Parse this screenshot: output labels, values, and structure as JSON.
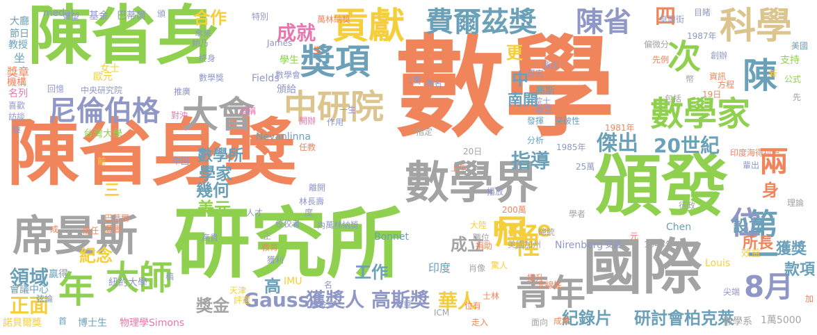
{
  "words": [
    {
      "text": "數學",
      "color": "#f0855c"
    },
    {
      "text": "陳省身獎",
      "color": "#f0855c"
    },
    {
      "text": "研究所",
      "color": "#8fd14f"
    },
    {
      "text": "陳省身",
      "color": "#8fd14f"
    },
    {
      "text": "頒發",
      "color": "#8fd14f"
    },
    {
      "text": "國際",
      "color": "#a3a3a3"
    },
    {
      "text": "數學界",
      "color": "#a3a3a3"
    },
    {
      "text": "席曼斯",
      "color": "#a3a3a3"
    },
    {
      "text": "數學家",
      "color": "#8fd14f"
    },
    {
      "text": "貢獻",
      "color": "#f5cf3b"
    },
    {
      "text": "科學",
      "color": "#dcc48e"
    },
    {
      "text": "獎項",
      "color": "#6aa0b8"
    },
    {
      "text": "中研院",
      "color": "#dcc48e"
    },
    {
      "text": "大會",
      "color": "#a3a3a3"
    },
    {
      "text": "尼倫伯格",
      "color": "#8f97c7"
    },
    {
      "text": "費爾茲獎",
      "color": "#6aa0b8"
    },
    {
      "text": "陳省",
      "color": "#8f97c7"
    },
    {
      "text": "次",
      "color": "#8fd14f"
    },
    {
      "text": "陳",
      "color": "#6aa0b8"
    },
    {
      "text": "青年",
      "color": "#a3a3a3"
    },
    {
      "text": "大師",
      "color": "#8fd14f"
    },
    {
      "text": "年",
      "color": "#8fd14f"
    },
    {
      "text": "第一",
      "color": "#6aa0b8"
    },
    {
      "text": "屆",
      "color": "#f5cf3b"
    },
    {
      "text": "兩",
      "color": "#f0855c"
    },
    {
      "text": "8月",
      "color": "#8f97c7"
    },
    {
      "text": "位",
      "color": "#8f97c7"
    },
    {
      "text": "傑出",
      "color": "#6aa0b8"
    },
    {
      "text": "20世紀",
      "color": "#6aa0b8"
    },
    {
      "text": "指導",
      "color": "#6aa0b8"
    },
    {
      "text": "成就",
      "color": "#e877b0"
    },
    {
      "text": "Prize",
      "color": "#f5cf3b"
    },
    {
      "text": "裡",
      "color": "#f5cf3b"
    },
    {
      "text": "Gauss",
      "color": "#8f97c7"
    },
    {
      "text": "獲獎人",
      "color": "#8f97c7"
    },
    {
      "text": "高斯獎",
      "color": "#8f97c7"
    },
    {
      "text": "華人",
      "color": "#f5cf3b"
    },
    {
      "text": "獎金",
      "color": "#a3a3a3"
    },
    {
      "text": "紀錄片",
      "color": "#6aa0b8"
    },
    {
      "text": "研討會",
      "color": "#6aa0b8"
    },
    {
      "text": "柏克萊",
      "color": "#6aa0b8"
    },
    {
      "text": "領域",
      "color": "#6aa0b8"
    },
    {
      "text": "正面",
      "color": "#f5cf3b"
    },
    {
      "text": "紀念",
      "color": "#f5cf3b"
    },
    {
      "text": "工作",
      "color": "#6aa0b8"
    },
    {
      "text": "成立",
      "color": "#a3a3a3"
    },
    {
      "text": "學家",
      "color": "#6aa0b8"
    },
    {
      "text": "幾何",
      "color": "#6aa0b8"
    },
    {
      "text": "美元",
      "color": "#8fd14f"
    },
    {
      "text": "數學所",
      "color": "#6aa0b8"
    },
    {
      "text": "合作",
      "color": "#f5cf3b"
    },
    {
      "text": "四",
      "color": "#f0855c"
    },
    {
      "text": "更",
      "color": "#f5cf3b"
    },
    {
      "text": "中",
      "color": "#6aa0b8"
    },
    {
      "text": "南開",
      "color": "#6aa0b8"
    },
    {
      "text": "身",
      "color": "#f0855c"
    },
    {
      "text": "設立",
      "color": "#6aa0b8"
    },
    {
      "text": "所長",
      "color": "#f0855c"
    },
    {
      "text": "獲獎",
      "color": "#6aa0b8"
    },
    {
      "text": "款項",
      "color": "#6aa0b8"
    },
    {
      "text": "高",
      "color": "#6aa0b8"
    },
    {
      "text": "三",
      "color": "#f5cf3b"
    },
    {
      "text": "大廳",
      "color": "#6aa0b8"
    },
    {
      "text": "節日",
      "color": "#6aa0b8"
    },
    {
      "text": "教授",
      "color": "#6aa0b8"
    },
    {
      "text": "坐",
      "color": "#6aa0b8"
    },
    {
      "text": "獎章",
      "color": "#f0855c"
    },
    {
      "text": "機構",
      "color": "#f0855c"
    },
    {
      "text": "名列",
      "color": "#e877b0"
    },
    {
      "text": "喜歡",
      "color": "#8f97c7"
    },
    {
      "text": "訪談",
      "color": "#8f97c7"
    },
    {
      "text": "極",
      "color": "#8f97c7"
    },
    {
      "text": "medal",
      "color": "#8f97c7"
    },
    {
      "text": "聲望",
      "color": "#8f97c7"
    },
    {
      "text": "基金",
      "color": "#8f97c7"
    },
    {
      "text": "巴蒂爾",
      "color": "#8f97c7"
    },
    {
      "text": "頒",
      "color": "#8f97c7"
    },
    {
      "text": "特別",
      "color": "#8f97c7"
    },
    {
      "text": "傘來",
      "color": "#8f97c7"
    },
    {
      "text": "鮑乃",
      "color": "#8f97c7"
    },
    {
      "text": "終身",
      "color": "#8f97c7"
    },
    {
      "text": "女士",
      "color": "#f5cf3b"
    },
    {
      "text": "歐元",
      "color": "#f5cf3b"
    },
    {
      "text": "回憶",
      "color": "#8f97c7"
    },
    {
      "text": "中央研究院",
      "color": "#8f97c7"
    },
    {
      "text": "推廣",
      "color": "#8f97c7"
    },
    {
      "text": "數學獎",
      "color": "#8f97c7"
    },
    {
      "text": "台灣大學",
      "color": "#8fd14f"
    },
    {
      "text": "號稱",
      "color": "#e877b0"
    },
    {
      "text": "對沖",
      "color": "#e877b0"
    },
    {
      "text": "James",
      "color": "#8f97c7"
    },
    {
      "text": "學生",
      "color": "#8fd14f"
    },
    {
      "text": "數學會",
      "color": "#8f97c7"
    },
    {
      "text": "頒給",
      "color": "#8f97c7"
    },
    {
      "text": "Fields",
      "color": "#8f97c7"
    },
    {
      "text": "萬林納獎",
      "color": "#f0855c"
    },
    {
      "text": "1萬",
      "color": "#8f97c7"
    },
    {
      "text": "為名",
      "color": "#8f97c7"
    },
    {
      "text": "目睹",
      "color": "#8f97c7"
    },
    {
      "text": "1987年",
      "color": "#8f97c7"
    },
    {
      "text": "創辦",
      "color": "#8f97c7"
    },
    {
      "text": "偏微分",
      "color": "#a3a3a3"
    },
    {
      "text": "先例",
      "color": "#f0855c"
    },
    {
      "text": "資訊",
      "color": "#f0855c"
    },
    {
      "text": "方程",
      "color": "#f0855c"
    },
    {
      "text": "19日",
      "color": "#f0855c"
    },
    {
      "text": "包括",
      "color": "#a3a3a3"
    },
    {
      "text": "幣",
      "color": "#a3a3a3"
    },
    {
      "text": "支持",
      "color": "#8fd14f"
    },
    {
      "text": "公式",
      "color": "#8fd14f"
    },
    {
      "text": "先",
      "color": "#a3a3a3"
    },
    {
      "text": "新",
      "color": "#f5cf3b"
    },
    {
      "text": "背面",
      "color": "#8f97c7"
    },
    {
      "text": "研究",
      "color": "#8f97c7"
    },
    {
      "text": "高斯",
      "color": "#6aa0b8"
    },
    {
      "text": "院士",
      "color": "#8f97c7"
    },
    {
      "text": "聯盟",
      "color": "#8f97c7"
    },
    {
      "text": "突破性",
      "color": "#6aa0b8"
    },
    {
      "text": "發揮",
      "color": "#6aa0b8"
    },
    {
      "text": "一生",
      "color": "#8f97c7"
    },
    {
      "text": "1981年",
      "color": "#f0855c"
    },
    {
      "text": "1985年",
      "color": "#8f97c7"
    },
    {
      "text": "分析",
      "color": "#6aa0b8"
    },
    {
      "text": "印度海得拉巴",
      "color": "#f0855c"
    },
    {
      "text": "輩出",
      "color": "#8f97c7"
    },
    {
      "text": "美國",
      "color": "#6aa0b8"
    },
    {
      "text": "Nevanlinna",
      "color": "#6aa0b8"
    },
    {
      "text": "開辦",
      "color": "#e877b0"
    },
    {
      "text": "作用",
      "color": "#8f97c7"
    },
    {
      "text": "任教",
      "color": "#f0855c"
    },
    {
      "text": "指定",
      "color": "#a3a3a3"
    },
    {
      "text": "20日",
      "color": "#a3a3a3"
    },
    {
      "text": "播放",
      "color": "#8f97c7"
    },
    {
      "text": "上午",
      "color": "#f0855c"
    },
    {
      "text": "25萬",
      "color": "#8f97c7"
    },
    {
      "text": "林長壽",
      "color": "#8f97c7"
    },
    {
      "text": "離開",
      "color": "#8f97c7"
    },
    {
      "text": "度",
      "color": "#8f97c7"
    },
    {
      "text": "人才",
      "color": "#8f97c7"
    },
    {
      "text": "佼佼者",
      "color": "#8f97c7"
    },
    {
      "text": "內萬林納獎",
      "color": "#8f97c7"
    },
    {
      "text": "200萬",
      "color": "#f0855c"
    },
    {
      "text": "學者",
      "color": "#a3a3a3"
    },
    {
      "text": "理論",
      "color": "#a3a3a3"
    },
    {
      "text": "行政",
      "color": "#a3a3a3"
    },
    {
      "text": "總統",
      "color": "#a3a3a3"
    },
    {
      "text": "大陸",
      "color": "#f5cf3b"
    },
    {
      "text": "職位",
      "color": "#a3a3a3"
    },
    {
      "text": "捐助",
      "color": "#f0855c"
    },
    {
      "text": "Bonnet",
      "color": "#6aa0b8"
    },
    {
      "text": "Chen",
      "color": "#6aa0b8"
    },
    {
      "text": "美國加州",
      "color": "#a3a3a3"
    },
    {
      "text": "Nirenberg",
      "color": "#8f97c7"
    },
    {
      "text": "安排",
      "color": "#8f97c7"
    },
    {
      "text": "元",
      "color": "#f0855c"
    },
    {
      "text": "1946年",
      "color": "#a3a3a3"
    },
    {
      "text": "Louis",
      "color": "#f5cf3b"
    },
    {
      "text": "效益",
      "color": "#f5cf3b"
    },
    {
      "text": "加",
      "color": "#f0855c"
    },
    {
      "text": "肖像",
      "color": "#a3a3a3"
    },
    {
      "text": "驚人",
      "color": "#f5cf3b"
    },
    {
      "text": "提升",
      "color": "#f0855c"
    },
    {
      "text": "非線性",
      "color": "#f0855c"
    },
    {
      "text": "尖端",
      "color": "#8f97c7"
    },
    {
      "text": "成",
      "color": "#f0855c"
    },
    {
      "text": "擔任",
      "color": "#f0855c"
    },
    {
      "text": "讚譽",
      "color": "#f0855c"
    },
    {
      "text": "巴蒂爾",
      "color": "#f0855c"
    },
    {
      "text": "高貴",
      "color": "#8f97c7"
    },
    {
      "text": "正",
      "color": "#a3a3a3"
    },
    {
      "text": "教育",
      "color": "#f0855c"
    },
    {
      "text": "獲利",
      "color": "#8f97c7"
    },
    {
      "text": "IMU",
      "color": "#f5cf3b"
    },
    {
      "text": "名",
      "color": "#8f97c7"
    },
    {
      "text": "印度",
      "color": "#6aa0b8"
    },
    {
      "text": "贏得",
      "color": "#6aa0b8"
    },
    {
      "text": "會議中心",
      "color": "#6aa0b8"
    },
    {
      "text": "弦論",
      "color": "#6aa0b8"
    },
    {
      "text": "紐約大學",
      "color": "#8f97c7"
    },
    {
      "text": "天津",
      "color": "#f5cf3b"
    },
    {
      "text": "評選",
      "color": "#f5cf3b"
    },
    {
      "text": "基金會",
      "color": "#8f97c7"
    },
    {
      "text": "聲重",
      "color": "#8f97c7"
    },
    {
      "text": "ICM",
      "color": "#a3a3a3"
    },
    {
      "text": "位有",
      "color": "#f0855c"
    },
    {
      "text": "走入",
      "color": "#f0855c"
    },
    {
      "text": "士林",
      "color": "#f0855c"
    },
    {
      "text": "面向",
      "color": "#a3a3a3"
    },
    {
      "text": "成果",
      "color": "#f0855c"
    },
    {
      "text": "數學系",
      "color": "#a3a3a3"
    },
    {
      "text": "1萬5000",
      "color": "#a3a3a3"
    },
    {
      "text": "諾貝爾獎",
      "color": "#f5cf3b"
    },
    {
      "text": "首",
      "color": "#6aa0b8"
    },
    {
      "text": "博士生",
      "color": "#6aa0b8"
    },
    {
      "text": "物理學",
      "color": "#e877b0"
    },
    {
      "text": "Simons",
      "color": "#e877b0"
    },
    {
      "text": "前",
      "color": "#f5cf3b"
    },
    {
      "text": "中國",
      "color": "#8f97c7"
    },
    {
      "text": "稿",
      "color": "#8f97c7"
    },
    {
      "text": "卓爾街",
      "color": "#8f97c7"
    },
    {
      "text": "生",
      "color": "#f0855c"
    }
  ]
}
